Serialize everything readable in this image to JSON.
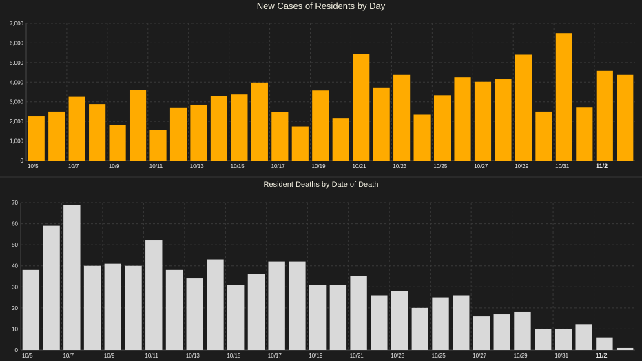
{
  "chart_data": [
    {
      "type": "bar",
      "title": "New Cases of Residents by Day",
      "xlabel": "",
      "ylabel": "",
      "color": "#ffab00",
      "grid": true,
      "ylim": [
        0,
        7000
      ],
      "yticks": [
        0,
        1000,
        2000,
        3000,
        4000,
        5000,
        6000,
        7000
      ],
      "ytick_labels": [
        "0",
        "1,000",
        "2,000",
        "3,000",
        "4,000",
        "5,000",
        "6,000",
        "7,000"
      ],
      "categories": [
        "10/5",
        "10/6",
        "10/7",
        "10/8",
        "10/9",
        "10/10",
        "10/11",
        "10/12",
        "10/13",
        "10/14",
        "10/15",
        "10/16",
        "10/17",
        "10/18",
        "10/19",
        "10/20",
        "10/21",
        "10/22",
        "10/23",
        "10/24",
        "10/25",
        "10/26",
        "10/27",
        "10/28",
        "10/29",
        "10/30",
        "10/31",
        "11/1",
        "11/2",
        "11/3"
      ],
      "xtick_labels": [
        "10/5",
        "",
        "10/7",
        "",
        "10/9",
        "",
        "10/11",
        "",
        "10/13",
        "",
        "10/15",
        "",
        "10/17",
        "",
        "10/19",
        "",
        "10/21",
        "",
        "10/23",
        "",
        "10/25",
        "",
        "10/27",
        "",
        "10/29",
        "",
        "10/31",
        "",
        "11/2",
        ""
      ],
      "bold_ticks": [
        "11/2"
      ],
      "values": [
        2250,
        2500,
        3250,
        2880,
        1800,
        3620,
        1570,
        2680,
        2850,
        3300,
        3370,
        3980,
        2470,
        1740,
        3580,
        2140,
        5430,
        3700,
        4370,
        2340,
        3330,
        4250,
        4020,
        4150,
        5400,
        2500,
        6500,
        2700,
        4580,
        4370
      ]
    },
    {
      "type": "bar",
      "title": "Resident Deaths by Date of Death",
      "xlabel": "",
      "ylabel": "",
      "color": "#d9d9d9",
      "grid": true,
      "ylim": [
        0,
        70
      ],
      "yticks": [
        0,
        10,
        20,
        30,
        40,
        50,
        60,
        70
      ],
      "ytick_labels": [
        "0",
        "10",
        "20",
        "30",
        "40",
        "50",
        "60",
        "70"
      ],
      "categories": [
        "10/5",
        "10/6",
        "10/7",
        "10/8",
        "10/9",
        "10/10",
        "10/11",
        "10/12",
        "10/13",
        "10/14",
        "10/15",
        "10/16",
        "10/17",
        "10/18",
        "10/19",
        "10/20",
        "10/21",
        "10/22",
        "10/23",
        "10/24",
        "10/25",
        "10/26",
        "10/27",
        "10/28",
        "10/29",
        "10/30",
        "10/31",
        "11/1",
        "11/2",
        "11/3"
      ],
      "xtick_labels": [
        "10/5",
        "",
        "10/7",
        "",
        "10/9",
        "",
        "10/11",
        "",
        "10/13",
        "",
        "10/15",
        "",
        "10/17",
        "",
        "10/19",
        "",
        "10/21",
        "",
        "10/23",
        "",
        "10/25",
        "",
        "10/27",
        "",
        "10/29",
        "",
        "10/31",
        "",
        "11/2",
        ""
      ],
      "bold_ticks": [
        "11/2"
      ],
      "values": [
        38,
        59,
        69,
        40,
        41,
        40,
        52,
        38,
        34,
        43,
        31,
        36,
        42,
        42,
        31,
        31,
        35,
        26,
        28,
        20,
        25,
        26,
        16,
        17,
        18,
        10,
        10,
        12,
        6,
        1
      ]
    }
  ]
}
